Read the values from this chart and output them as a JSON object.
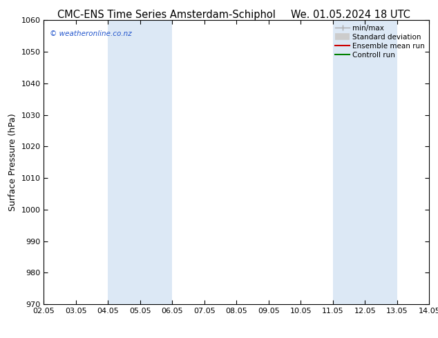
{
  "title_left": "CMC-ENS Time Series Amsterdam-Schiphol",
  "title_right": "We. 01.05.2024 18 UTC",
  "ylabel": "Surface Pressure (hPa)",
  "ylim": [
    970,
    1060
  ],
  "yticks": [
    970,
    980,
    990,
    1000,
    1010,
    1020,
    1030,
    1040,
    1050,
    1060
  ],
  "xtick_labels": [
    "02.05",
    "03.05",
    "04.05",
    "05.05",
    "06.05",
    "07.05",
    "08.05",
    "09.05",
    "10.05",
    "11.05",
    "12.05",
    "13.05",
    "14.05"
  ],
  "xlim": [
    0,
    12
  ],
  "shaded_bands": [
    {
      "x_start": 2,
      "x_end": 3,
      "color": "#dce8f5"
    },
    {
      "x_start": 3,
      "x_end": 4,
      "color": "#dce8f5"
    },
    {
      "x_start": 9,
      "x_end": 10,
      "color": "#dce8f5"
    },
    {
      "x_start": 10,
      "x_end": 11,
      "color": "#dce8f5"
    }
  ],
  "watermark": "© weatheronline.co.nz",
  "watermark_color": "#2255cc",
  "background_color": "#ffffff",
  "title_fontsize": 10.5,
  "ylabel_fontsize": 9,
  "tick_fontsize": 8,
  "legend_fontsize": 7.5
}
